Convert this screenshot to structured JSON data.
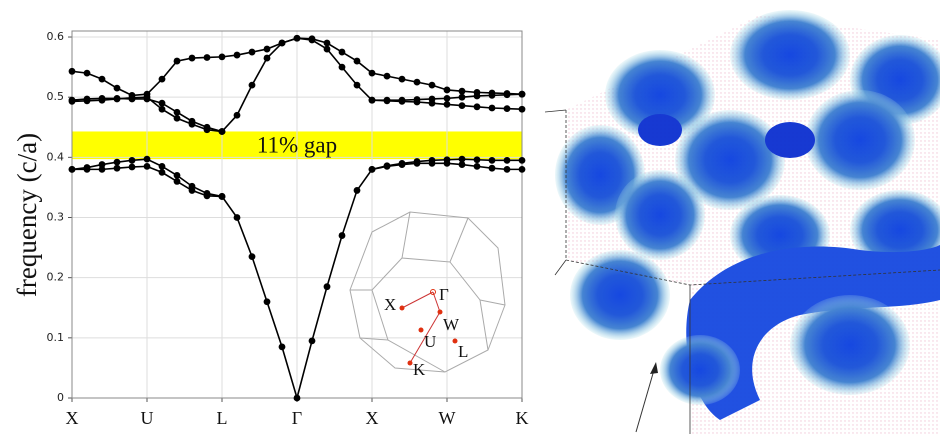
{
  "chart_data": {
    "type": "line",
    "y_label": "frequency (c/a)",
    "x": [
      0,
      0.2,
      0.4,
      0.6,
      0.8,
      1,
      1.2,
      1.4,
      1.6,
      1.8,
      2,
      2.2,
      2.4,
      2.6,
      2.8,
      3,
      3.2,
      3.4,
      3.6,
      3.8,
      4,
      4.2,
      4.4,
      4.6,
      4.8,
      5,
      5.2,
      5.4,
      5.6,
      5.8,
      6
    ],
    "series": [
      {
        "color": "#000000",
        "values": [
          0.38,
          0.38,
          0.38,
          0.382,
          0.384,
          0.385,
          0.375,
          0.36,
          0.345,
          0.336,
          0.335,
          0.3,
          0.235,
          0.16,
          0.085,
          0,
          0.095,
          0.185,
          0.27,
          0.345,
          0.38,
          0.385,
          0.388,
          0.39,
          0.39,
          0.39,
          0.388,
          0.385,
          0.382,
          0.38,
          0.38
        ]
      },
      {
        "color": "#000000",
        "values": [
          0.38,
          0.383,
          0.388,
          0.392,
          0.395,
          0.397,
          0.385,
          0.37,
          0.352,
          0.34,
          0.335,
          null,
          null,
          null,
          null,
          null,
          null,
          null,
          null,
          null,
          0.38,
          0.386,
          0.39,
          0.393,
          0.395,
          0.396,
          0.397,
          0.396,
          0.395,
          0.395,
          0.395
        ]
      },
      {
        "color": "#000000",
        "values": [
          0.493,
          0.494,
          0.495,
          0.497,
          0.499,
          0.5,
          0.48,
          0.465,
          0.455,
          0.446,
          0.443,
          0.47,
          0.52,
          0.565,
          0.59,
          0.598,
          0.595,
          0.58,
          0.55,
          0.52,
          0.495,
          0.494,
          0.493,
          0.492,
          0.49,
          0.488,
          0.486,
          0.484,
          0.482,
          0.481,
          0.48
        ]
      },
      {
        "color": "#000000",
        "values": [
          0.495,
          0.497,
          0.498,
          0.498,
          0.497,
          0.497,
          0.49,
          0.475,
          0.46,
          0.45,
          0.443,
          null,
          null,
          null,
          null,
          null,
          null,
          null,
          null,
          null,
          0.495,
          0.495,
          0.495,
          0.496,
          0.497,
          0.498,
          0.5,
          0.502,
          0.503,
          0.504,
          0.505
        ]
      },
      {
        "color": "#000000",
        "values": [
          0.543,
          0.54,
          0.53,
          0.515,
          0.503,
          0.505,
          0.53,
          0.56,
          0.565,
          0.566,
          0.567,
          0.57,
          0.575,
          0.58,
          0.59,
          0.598,
          0.597,
          0.59,
          0.575,
          0.56,
          0.54,
          0.535,
          0.53,
          0.525,
          0.52,
          0.512,
          0.51,
          0.508,
          0.507,
          0.506,
          0.505
        ]
      }
    ],
    "xlim": [
      0,
      6
    ],
    "xticks": [
      {
        "value": 0,
        "label": "X"
      },
      {
        "value": 1,
        "label": "U"
      },
      {
        "value": 2,
        "label": "L"
      },
      {
        "value": 3,
        "label": "Γ"
      },
      {
        "value": 4,
        "label": "X"
      },
      {
        "value": 5,
        "label": "W"
      },
      {
        "value": 6,
        "label": "K"
      }
    ],
    "ylim": [
      0,
      0.61
    ],
    "yticks": [
      0,
      0.1,
      0.2,
      0.3,
      0.4,
      0.5,
      0.6
    ],
    "grid": true,
    "annotations": [
      {
        "text": "11% gap",
        "y_range": [
          0.397,
          0.443
        ],
        "color": "#ffff00"
      }
    ]
  },
  "inset": {
    "labels": [
      "X",
      "Γ",
      "W",
      "U",
      "L",
      "K"
    ]
  }
}
